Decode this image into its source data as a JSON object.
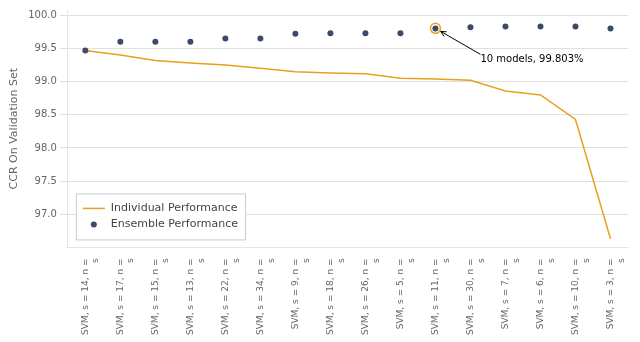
{
  "chart_data": {
    "type": "line",
    "categories": [
      "SVM, s = 14, n =\ns",
      "SVM, s = 17, n =\ns",
      "SVM, s = 15, n =\ns",
      "SVM, s = 13, n =\ns",
      "SVM, s = 22, n =\ns",
      "SVM, s = 34, n =\ns",
      "SVM, s = 9, n =\ns",
      "SVM, s = 18, n =\ns",
      "SVM, s = 26, n =\ns",
      "SVM, s = 5, n =\ns",
      "SVM, s = 11, n =\ns",
      "SVM, s = 30, n =\ns",
      "SVM, s = 7, n =\ns",
      "SVM, s = 6, n =\ns",
      "SVM, s = 10, n =\ns",
      "SVM, s = 3, n =\ns"
    ],
    "series": [
      {
        "name": "Individual Performance",
        "color": "#e8a020",
        "type": "line",
        "values": [
          99.47,
          99.4,
          99.32,
          99.28,
          99.25,
          99.2,
          99.15,
          99.13,
          99.12,
          99.05,
          99.04,
          99.02,
          98.86,
          98.8,
          98.43,
          96.63
        ]
      },
      {
        "name": "Ensemble Performance",
        "color": "#3b4a6b",
        "type": "scatter",
        "marker": "circle",
        "values": [
          99.47,
          99.6,
          99.6,
          99.6,
          99.65,
          99.65,
          99.72,
          99.73,
          99.73,
          99.73,
          99.8,
          99.82,
          99.83,
          99.83,
          99.83,
          99.8
        ]
      }
    ],
    "annotations": [
      {
        "text": "10 models, 99.803%",
        "x": "SVM, s = 11, n =\ns",
        "y": 99.803
      }
    ],
    "y_label": "CCR On Validation Set",
    "ylim": [
      96.5,
      100.08
    ],
    "yticks": [
      {
        "value": 97.0,
        "label": "97.0"
      },
      {
        "value": 97.5,
        "label": "97.5"
      },
      {
        "value": 98.0,
        "label": "98.0"
      },
      {
        "value": 98.5,
        "label": "98.5"
      },
      {
        "value": 99.0,
        "label": "99.0"
      },
      {
        "value": 99.5,
        "label": "99.5"
      },
      {
        "value": 100.0,
        "label": "100.0"
      }
    ],
    "grid": true,
    "legend": "lower left"
  }
}
